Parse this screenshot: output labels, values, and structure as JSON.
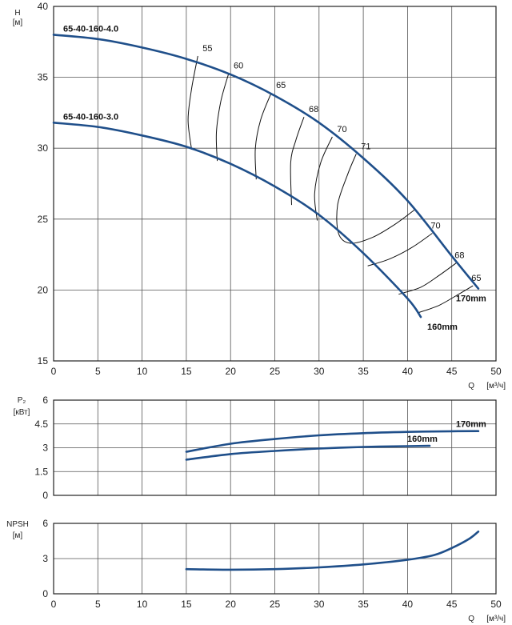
{
  "chart_data": [
    {
      "type": "line",
      "ylabel": "H",
      "yunit": "[м]",
      "xlabel": "Q",
      "xunit": "[м³/ч]",
      "xlim": [
        0,
        50
      ],
      "ylim": [
        15,
        40
      ],
      "xticks": [
        0,
        5,
        10,
        15,
        20,
        25,
        30,
        35,
        40,
        45,
        50
      ],
      "yticks": [
        15,
        20,
        25,
        30,
        35,
        40
      ],
      "grid": true,
      "series": [
        {
          "name": "65-40-160-4.0",
          "tag": "170mm",
          "color": "#1f4f8a",
          "points": [
            [
              0,
              38
            ],
            [
              5,
              37.7
            ],
            [
              10,
              37.1
            ],
            [
              15,
              36.3
            ],
            [
              20,
              35.2
            ],
            [
              25,
              33.7
            ],
            [
              30,
              31.8
            ],
            [
              35,
              29.3
            ],
            [
              40,
              26.3
            ],
            [
              45,
              22.4
            ],
            [
              48,
              20.1
            ]
          ]
        },
        {
          "name": "65-40-160-3.0",
          "tag": "160mm",
          "color": "#1f4f8a",
          "points": [
            [
              0,
              31.8
            ],
            [
              5,
              31.5
            ],
            [
              10,
              30.9
            ],
            [
              15,
              30.1
            ],
            [
              20,
              28.9
            ],
            [
              25,
              27.3
            ],
            [
              30,
              25.3
            ],
            [
              35,
              22.6
            ],
            [
              40,
              19.4
            ],
            [
              41.5,
              18.1
            ]
          ]
        }
      ],
      "efficiency_lines": [
        {
          "label": "55",
          "points": [
            [
              16.3,
              36.5
            ],
            [
              15.6,
              34.2
            ],
            [
              15.2,
              32.0
            ],
            [
              15.6,
              29.9
            ]
          ]
        },
        {
          "label": "60",
          "points": [
            [
              19.8,
              35.3
            ],
            [
              18.9,
              33.3
            ],
            [
              18.4,
              31.1
            ],
            [
              18.5,
              29.1
            ]
          ]
        },
        {
          "label": "65",
          "points": [
            [
              24.6,
              33.9
            ],
            [
              23.4,
              32.0
            ],
            [
              22.8,
              30.0
            ],
            [
              22.9,
              27.8
            ]
          ]
        },
        {
          "label": "68",
          "points": [
            [
              28.3,
              32.2
            ],
            [
              27.4,
              30.6
            ],
            [
              26.8,
              29.0
            ],
            [
              26.9,
              26.0
            ]
          ]
        },
        {
          "label": "70",
          "points": [
            [
              31.5,
              30.8
            ],
            [
              30.2,
              29.0
            ],
            [
              29.5,
              26.8
            ],
            [
              29.8,
              24.9
            ]
          ]
        },
        {
          "label": "71",
          "points": [
            [
              34.2,
              29.6
            ],
            [
              33.2,
              28.1
            ],
            [
              32.1,
              26.0
            ],
            [
              32.2,
              24.0
            ],
            [
              33.5,
              23.3
            ],
            [
              36.0,
              23.7
            ],
            [
              38.5,
              24.6
            ],
            [
              40.9,
              25.7
            ]
          ]
        },
        {
          "label": "70",
          "points": [
            [
              35.5,
              21.7
            ],
            [
              38.0,
              22.2
            ],
            [
              40.5,
              23.0
            ],
            [
              42.8,
              24.0
            ]
          ]
        },
        {
          "label": "68",
          "points": [
            [
              39.0,
              19.7
            ],
            [
              41.5,
              20.2
            ],
            [
              43.5,
              21.0
            ],
            [
              45.5,
              21.9
            ]
          ]
        },
        {
          "label": "65",
          "points": [
            [
              41.2,
              18.4
            ],
            [
              43.5,
              18.9
            ],
            [
              45.5,
              19.6
            ],
            [
              47.4,
              20.3
            ]
          ]
        }
      ]
    },
    {
      "type": "line",
      "ylabel": "P₂",
      "yunit": "[кВт]",
      "xlim": [
        0,
        50
      ],
      "ylim": [
        0,
        6
      ],
      "yticks": [
        0,
        1.5,
        3,
        4.5,
        6
      ],
      "xticks": [
        0,
        5,
        10,
        15,
        20,
        25,
        30,
        35,
        40,
        45,
        50
      ],
      "grid": true,
      "series": [
        {
          "name": "170mm",
          "color": "#1f4f8a",
          "points": [
            [
              15,
              2.75
            ],
            [
              20,
              3.25
            ],
            [
              25,
              3.55
            ],
            [
              30,
              3.78
            ],
            [
              35,
              3.92
            ],
            [
              40,
              4.0
            ],
            [
              45,
              4.04
            ],
            [
              48,
              4.05
            ]
          ]
        },
        {
          "name": "160mm",
          "color": "#1f4f8a",
          "points": [
            [
              15,
              2.25
            ],
            [
              20,
              2.6
            ],
            [
              25,
              2.8
            ],
            [
              30,
              2.95
            ],
            [
              35,
              3.05
            ],
            [
              40,
              3.1
            ],
            [
              42.5,
              3.12
            ]
          ]
        }
      ]
    },
    {
      "type": "line",
      "ylabel": "NPSH",
      "yunit": "[м]",
      "xlabel": "Q",
      "xunit": "[м³/ч]",
      "xlim": [
        0,
        50
      ],
      "ylim": [
        0,
        6
      ],
      "yticks": [
        0,
        3,
        6
      ],
      "xticks": [
        0,
        5,
        10,
        15,
        20,
        25,
        30,
        35,
        40,
        45,
        50
      ],
      "grid": true,
      "series": [
        {
          "color": "#1f4f8a",
          "points": [
            [
              15,
              2.1
            ],
            [
              20,
              2.05
            ],
            [
              25,
              2.1
            ],
            [
              30,
              2.25
            ],
            [
              35,
              2.5
            ],
            [
              40,
              2.9
            ],
            [
              43,
              3.3
            ],
            [
              45,
              3.9
            ],
            [
              47,
              4.7
            ],
            [
              48,
              5.3
            ]
          ]
        }
      ]
    }
  ]
}
